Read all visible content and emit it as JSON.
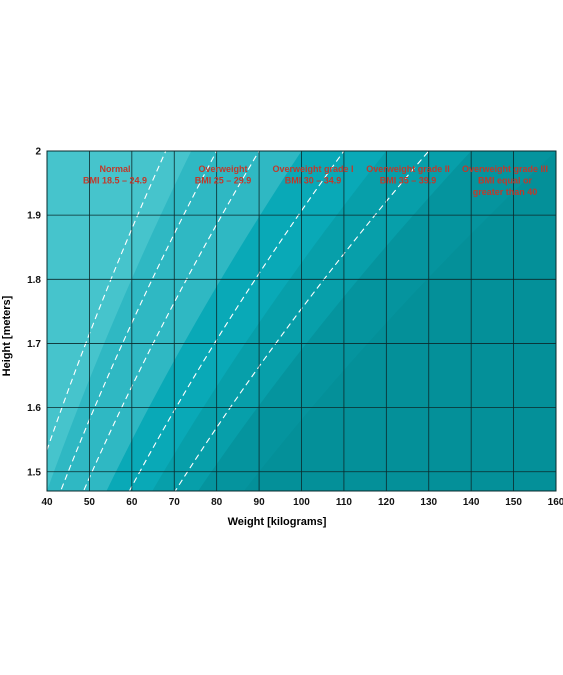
{
  "chart_data": {
    "type": "area",
    "title": "",
    "xlabel": "Weight [kilograms]",
    "ylabel": "Height [meters]",
    "xlim": [
      40,
      160
    ],
    "ylim": [
      1.47,
      2.0
    ],
    "x_ticks": [
      40,
      50,
      60,
      70,
      80,
      90,
      100,
      110,
      120,
      130,
      140,
      150,
      160
    ],
    "y_ticks": [
      1.5,
      1.6,
      1.7,
      1.8,
      1.9,
      2
    ],
    "y_tick_labels": [
      "1.5",
      "1.6",
      "1.7",
      "1.8",
      "1.9",
      "2"
    ],
    "grid": true,
    "zone_boundaries_bmi": [
      18.5,
      25,
      30,
      35,
      40
    ],
    "dashed_bmi_lines": [
      17,
      20,
      22.5,
      27.5,
      32.5
    ],
    "zones": [
      {
        "name": "Normal",
        "range": "BMI 18.5 – 24.9",
        "lines": [
          "Normal",
          "BMI 18.5 – 24.9"
        ],
        "color": "#2fb8c3"
      },
      {
        "name": "Overweight",
        "range": "BMI 25 – 29.9",
        "lines": [
          "Overweight",
          "BMI 25 – 29.9"
        ],
        "color": "#09a9b7"
      },
      {
        "name": "Overweight grade I",
        "range": "BMI 30 – 34.9",
        "lines": [
          "Overweight grade I",
          "BMI 30 – 34.9"
        ],
        "color": "#079faa"
      },
      {
        "name": "Overweight grade II",
        "range": "BMI 35 – 39.9",
        "lines": [
          "Overweight grade II",
          "BMI 35 – 39.9"
        ],
        "color": "#05949e"
      },
      {
        "name": "Overweight grade III",
        "range": "BMI equal or greater than 40",
        "lines": [
          "Overweight grade III",
          "BMI equal or",
          "greater than 40"
        ],
        "color": "#049099"
      }
    ],
    "colors": {
      "underweight": "#46c4cc",
      "grid": "#0b2a2c",
      "dash": "#ffffff",
      "label": "#c0392b"
    }
  }
}
